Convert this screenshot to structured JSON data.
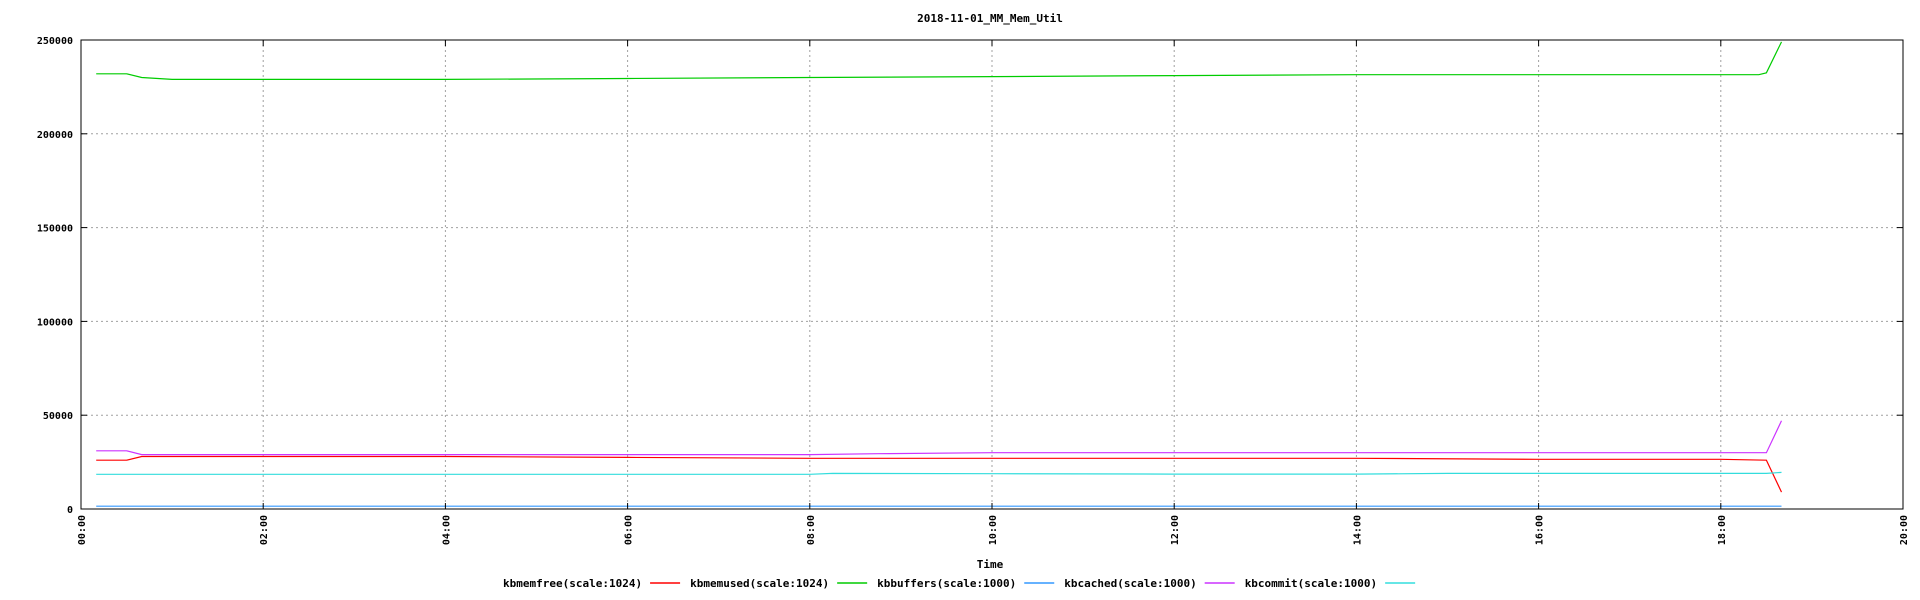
{
  "chart_data": {
    "type": "line",
    "title": "2018-11-01_MM_Mem_Util",
    "xlabel": "Time",
    "ylabel": "",
    "xlim": [
      "00:00",
      "20:00"
    ],
    "ylim": [
      0,
      250000
    ],
    "yticks": [
      0,
      50000,
      100000,
      150000,
      200000,
      250000
    ],
    "xticks": [
      "00:00",
      "02:00",
      "04:00",
      "06:00",
      "08:00",
      "10:00",
      "12:00",
      "14:00",
      "16:00",
      "18:00",
      "20:00"
    ],
    "grid": true,
    "legend_position": "bottom-center",
    "series": [
      {
        "name": "kbmemfree(scale:1024)",
        "color": "#ff0000",
        "x": [
          "00:10",
          "00:30",
          "00:40",
          "01:00",
          "02:00",
          "04:00",
          "06:00",
          "08:00",
          "10:00",
          "12:00",
          "14:00",
          "16:00",
          "18:00",
          "18:30",
          "18:40"
        ],
        "values": [
          26000,
          26000,
          28000,
          28000,
          28000,
          28000,
          27500,
          27000,
          27000,
          27000,
          27000,
          26500,
          26500,
          26000,
          9000
        ]
      },
      {
        "name": "kbmemused(scale:1024)",
        "color": "#00cc00",
        "x": [
          "00:10",
          "00:30",
          "00:40",
          "01:00",
          "02:00",
          "03:00",
          "04:00",
          "06:00",
          "08:00",
          "10:00",
          "12:00",
          "14:00",
          "16:00",
          "18:00",
          "18:25",
          "18:30",
          "18:40"
        ],
        "values": [
          232000,
          232000,
          230000,
          229000,
          229000,
          229000,
          229000,
          229500,
          230000,
          230500,
          231000,
          231500,
          231500,
          231500,
          231500,
          232500,
          249000
        ]
      },
      {
        "name": "kbbuffers(scale:1000)",
        "color": "#3399ff",
        "x": [
          "00:10",
          "04:00",
          "08:00",
          "12:00",
          "16:00",
          "18:40"
        ],
        "values": [
          1500,
          1500,
          1500,
          1500,
          1500,
          1500
        ]
      },
      {
        "name": "kbcached(scale:1000)",
        "color": "#cc33ff",
        "x": [
          "00:10",
          "00:30",
          "00:40",
          "01:00",
          "02:00",
          "04:00",
          "06:00",
          "08:00",
          "08:45",
          "10:00",
          "12:00",
          "13:15",
          "14:00",
          "16:00",
          "18:00",
          "18:30",
          "18:40"
        ],
        "values": [
          31000,
          31000,
          29000,
          29000,
          29000,
          29000,
          29000,
          29000,
          29500,
          30000,
          30000,
          30000,
          30000,
          30000,
          30000,
          30000,
          47000
        ]
      },
      {
        "name": "kbcommit(scale:1000)",
        "color": "#33dddd",
        "x": [
          "00:10",
          "02:00",
          "04:00",
          "06:00",
          "08:00",
          "08:15",
          "10:00",
          "12:00",
          "14:00",
          "15:00",
          "16:00",
          "17:00",
          "18:00",
          "18:30",
          "18:40"
        ],
        "values": [
          18500,
          18500,
          18500,
          18500,
          18500,
          19000,
          18800,
          18600,
          18600,
          19000,
          19000,
          19000,
          19000,
          19000,
          19500
        ]
      }
    ]
  }
}
